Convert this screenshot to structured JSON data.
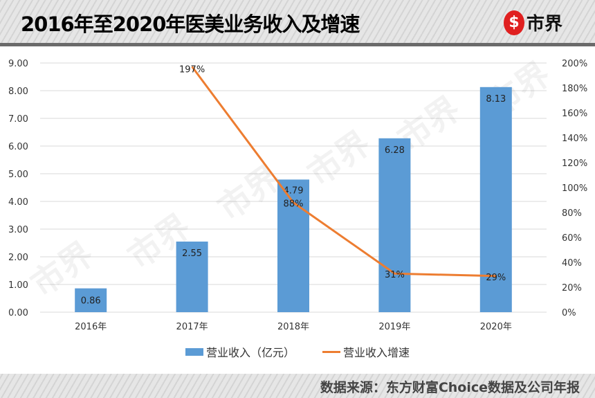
{
  "header": {
    "title": "2016年至2020年医美业务收入及增速",
    "logo_text": "市界"
  },
  "footer": {
    "source": "数据来源：东方财富Choice数据及公司年报"
  },
  "chart_data": {
    "type": "bar+line",
    "categories": [
      "2016年",
      "2017年",
      "2018年",
      "2019年",
      "2020年"
    ],
    "series": [
      {
        "name": "营业收入（亿元）",
        "type": "bar",
        "axis": "left",
        "color": "#5b9bd5",
        "values": [
          0.86,
          2.55,
          4.79,
          6.28,
          8.13
        ],
        "labels": [
          "0.86",
          "2.55",
          "4.79",
          "6.28",
          "8.13"
        ]
      },
      {
        "name": "营业收入增速",
        "type": "line",
        "axis": "right",
        "color": "#ed7d31",
        "values": [
          null,
          197,
          88,
          31,
          29
        ],
        "labels": [
          "",
          "197%",
          "88%",
          "31%",
          "29%"
        ]
      }
    ],
    "left_axis": {
      "range": [
        0,
        9
      ],
      "ticks": [
        "0.00",
        "1.00",
        "2.00",
        "3.00",
        "4.00",
        "5.00",
        "6.00",
        "7.00",
        "8.00",
        "9.00"
      ]
    },
    "right_axis": {
      "range": [
        0,
        200
      ],
      "ticks": [
        "0%",
        "20%",
        "40%",
        "60%",
        "80%",
        "100%",
        "120%",
        "140%",
        "160%",
        "180%",
        "200%"
      ]
    },
    "grid": true,
    "legend_position": "bottom"
  }
}
